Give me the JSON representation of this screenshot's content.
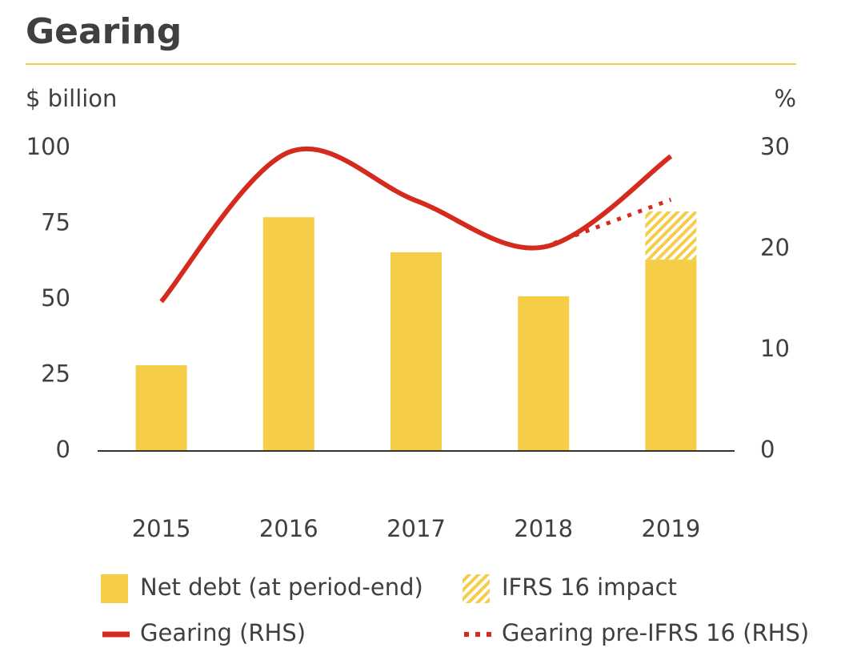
{
  "chart_data": {
    "type": "bar-line",
    "title": "Gearing",
    "y_label": "$ billion",
    "y2_label": "%",
    "categories": [
      "2015",
      "2016",
      "2017",
      "2018",
      "2019"
    ],
    "ylim": [
      0,
      100
    ],
    "yticks": [
      0,
      25,
      50,
      75,
      100
    ],
    "y2lim": [
      0,
      30
    ],
    "y2ticks": [
      0,
      10,
      20,
      30
    ],
    "series": [
      {
        "name": "Net debt (at period-end)",
        "type": "bar",
        "color": "#f5cd47",
        "values": [
          28.3,
          77.2,
          65.6,
          51.1,
          63.2
        ]
      },
      {
        "name": "IFRS 16 impact",
        "type": "bar",
        "stacked": true,
        "hatch": true,
        "color": "#f5cd47",
        "values": [
          null,
          null,
          null,
          null,
          15.9
        ]
      },
      {
        "name": "Gearing (RHS)",
        "type": "line",
        "axis": "y2",
        "color": "#d52b1e",
        "values": [
          14.8,
          29.6,
          24.8,
          20.2,
          29.2
        ]
      },
      {
        "name": "Gearing pre-IFRS 16 (RHS)",
        "type": "line",
        "axis": "y2",
        "dotted": true,
        "color": "#d52b1e",
        "values": [
          null,
          null,
          null,
          20.2,
          24.9
        ]
      }
    ]
  }
}
